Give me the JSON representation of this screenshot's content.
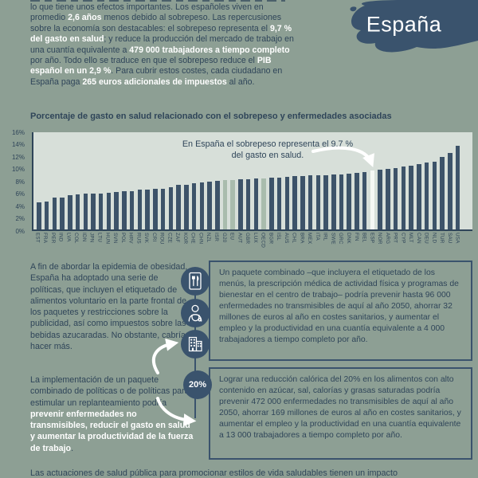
{
  "theme": {
    "page_bg": "#8d9f94",
    "ink": "#2f4559",
    "bar_color": "#3d5369",
    "aggregate_bar_color": "#a9bcad",
    "highlight_bar_color": "#f4f8f4",
    "plot_bg": "#d7dfd9",
    "banner_color": "#3a536d",
    "white": "#ffffff"
  },
  "header": {
    "country_label": "España",
    "intro_segments": [
      {
        "t": "lo que tiene unos efectos importantes. Los españoles viven en promedio ",
        "h": false
      },
      {
        "t": "2,6 años",
        "h": true
      },
      {
        "t": " menos debido al sobrepeso. Las repercusiones sobre la economía son destacables: el sobrepeso representa el ",
        "h": false
      },
      {
        "t": "9,7 % del gasto en salud",
        "h": true
      },
      {
        "t": "; y reduce la producción del mercado de trabajo en una cuantía equivalente a ",
        "h": false
      },
      {
        "t": "479 000 trabajadores a tiempo completo",
        "h": true
      },
      {
        "t": " por año. Todo ello se traduce en que el sobrepeso reduce el ",
        "h": false
      },
      {
        "t": "PIB español en un 2,9 %",
        "h": true
      },
      {
        "t": ". Para cubrir estos costes, cada ciudadano en España paga ",
        "h": false
      },
      {
        "t": "265 euros adicionales de impuestos",
        "h": true
      },
      {
        "t": " al año.",
        "h": false
      }
    ]
  },
  "chart_data": {
    "type": "bar",
    "title": "Porcentaje de gasto en salud relacionado con el sobrepeso y enfermedades asociadas",
    "unit": "%",
    "ylim": [
      0,
      16
    ],
    "ytick_step": 2,
    "grid": false,
    "legend": false,
    "categories": [
      "EST",
      "FRA",
      "PER",
      "IND",
      "LVA",
      "COL",
      "IDN",
      "JPN",
      "LTU",
      "HUN",
      "SVN",
      "POL",
      "HRV",
      "RUS",
      "SVK",
      "CRI",
      "ROU",
      "CZE",
      "ZAF",
      "KOR",
      "CHE",
      "CHN",
      "NZL",
      "ISR",
      "G20",
      "EU",
      "AUT",
      "GBR",
      "LUX",
      "OECD",
      "BGR",
      "ISL",
      "AUS",
      "CHL",
      "BRA",
      "MEX",
      "ITA",
      "IRL",
      "SWE",
      "GRC",
      "DNK",
      "FIN",
      "BEL",
      "ESP",
      "NOR",
      "ARG",
      "PRT",
      "CYP",
      "MLT",
      "CAN",
      "DEU",
      "NLD",
      "TUR",
      "SAU",
      "USA"
    ],
    "values": [
      4.4,
      4.6,
      5.3,
      5.3,
      5.7,
      5.8,
      5.9,
      5.9,
      5.9,
      6.1,
      6.2,
      6.3,
      6.3,
      6.6,
      6.6,
      6.7,
      6.7,
      6.9,
      7.3,
      7.4,
      7.6,
      7.7,
      7.9,
      8.0,
      8.1,
      8.1,
      8.3,
      8.3,
      8.4,
      8.4,
      8.5,
      8.5,
      8.6,
      8.8,
      8.8,
      8.9,
      8.9,
      8.9,
      9.0,
      9.1,
      9.2,
      9.3,
      9.4,
      9.7,
      9.9,
      10.0,
      10.1,
      10.3,
      10.5,
      10.7,
      11.0,
      11.2,
      12.0,
      12.6,
      13.8
    ],
    "highlight_category": "ESP",
    "aggregate_categories": [
      "G20",
      "EU",
      "OECD"
    ],
    "annotation": "En España el sobrepeso representa el 9,7 % del gasto en salud."
  },
  "left_column": {
    "para1": "A fin de abordar la epidemia de obesidad, España ha adoptado una serie de políticas, que incluyen el etiquetado de alimentos voluntario en la parte frontal de los paquetes y restricciones sobre la publicidad, así como impuestos sobre las bebidas azucaradas. No obstante, cabría hacer más.",
    "para2_segments": [
      {
        "t": "La implementación de un paquete combinado de políticas o de políticas para estimular un replanteamiento podría ",
        "h": false
      },
      {
        "t": "prevenir enfermedades no transmisibles, reducir el gasto en salud y aumentar la productividad de la fuerza de trabajo",
        "h": true
      },
      {
        "t": ".",
        "h": false
      }
    ]
  },
  "rail": {
    "icons": [
      "menu-labelling-icon",
      "doctor-prescription-icon",
      "workplace-building-icon"
    ],
    "badge_label": "20%"
  },
  "boxes": [
    {
      "text": "Un paquete combinado –que incluyera el etiquetado de los menús, la prescripción médica de actividad física y programas de bienestar en el centro de trabajo– podría prevenir hasta 96 000 enfermedades no transmisibles de aquí al año 2050, ahorrar 32 millones de euros al año en costes sanitarios, y aumentar el empleo y la productividad en una cuantía equivalente a 4 000 trabajadores a tiempo completo por año."
    },
    {
      "text": "Lograr una reducción calórica del 20% en los alimentos con alto contenido en azúcar, sal, calorías y grasas saturadas podría prevenir 472 000 enfermedades no transmisibles de aquí al año 2050, ahorrar 169 millones de euros al año en costes sanitarios, y aumentar el empleo y la productividad en una cuantía equivalente a 13 000 trabajadores a tiempo completo por año."
    }
  ],
  "footer": {
    "text": "Las actuaciones de salud pública para promocionar estilos de vida saludables tienen un impacto"
  }
}
